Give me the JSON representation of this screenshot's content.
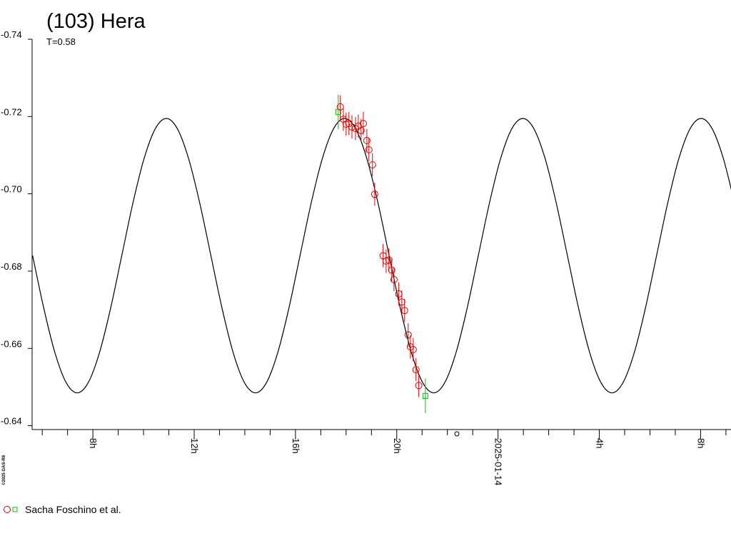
{
  "chart_data": {
    "type": "scatter",
    "title": "(103) Hera",
    "subtitle": "T=0.58",
    "copyright": "©2025 GAS-R8",
    "legend": "bottom-left",
    "xlim": [
      5.6,
      33.2
    ],
    "ylim": [
      -0.639,
      -0.74
    ],
    "xticks": [
      {
        "value": 8,
        "label": "8h"
      },
      {
        "value": 12,
        "label": "12h"
      },
      {
        "value": 16,
        "label": "16h"
      },
      {
        "value": 20,
        "label": "20h"
      },
      {
        "value": 24,
        "label": "2025-01-14"
      },
      {
        "value": 28,
        "label": "4h"
      },
      {
        "value": 32,
        "label": "8h"
      }
    ],
    "xminorticks": [
      6,
      7,
      9,
      10,
      11,
      13,
      14,
      15,
      17,
      18,
      19,
      21,
      22,
      23,
      25,
      26,
      27,
      29,
      30,
      31,
      33
    ],
    "yticks": [
      -0.74,
      -0.72,
      {
        "value": -0.7,
        "label": "-0.70"
      },
      -0.68,
      -0.66,
      -0.64
    ],
    "model": {
      "color": "#000000",
      "x": [
        5.62,
        6.06,
        6.5,
        6.94,
        7.38,
        7.82,
        8.26,
        8.7,
        9.14,
        9.58,
        10.02,
        10.46,
        10.9,
        11.34,
        11.78,
        12.22,
        12.66,
        13.1,
        13.54,
        13.98,
        14.42,
        14.86,
        15.3,
        15.74,
        16.18,
        16.62,
        17.06,
        17.5,
        17.94,
        18.38,
        18.82,
        19.26,
        19.7,
        20.14,
        20.58,
        21.02,
        21.46,
        21.9,
        22.34,
        22.78,
        23.22,
        23.66,
        24.1,
        24.54,
        24.98,
        25.42,
        25.86,
        26.3,
        26.74,
        27.18,
        27.62,
        28.06,
        28.5,
        28.94,
        29.38,
        29.82,
        30.26,
        30.7,
        31.14,
        31.58,
        32.02,
        32.46,
        32.9,
        33.34
      ],
      "values": [
        -0.684,
        -0.6704,
        -0.6589,
        -0.6512,
        -0.6485,
        -0.6512,
        -0.6589,
        -0.6704,
        -0.684,
        -0.6976,
        -0.7091,
        -0.7168,
        -0.7195,
        -0.7168,
        -0.7091,
        -0.6976,
        -0.684,
        -0.6704,
        -0.6589,
        -0.6512,
        -0.6485,
        -0.6512,
        -0.6589,
        -0.6704,
        -0.684,
        -0.6976,
        -0.7091,
        -0.7168,
        -0.7195,
        -0.7168,
        -0.7091,
        -0.6976,
        -0.684,
        -0.6704,
        -0.6589,
        -0.6512,
        -0.6485,
        -0.6512,
        -0.6589,
        -0.6704,
        -0.684,
        -0.6976,
        -0.7091,
        -0.7168,
        -0.7195,
        -0.7168,
        -0.7091,
        -0.6976,
        -0.684,
        -0.6704,
        -0.6589,
        -0.6512,
        -0.6485,
        -0.6512,
        -0.6589,
        -0.6704,
        -0.684,
        -0.6976,
        -0.7091,
        -0.7168,
        -0.7195,
        -0.7168,
        -0.7091,
        -0.6976
      ]
    },
    "series": [
      {
        "name": "Sacha Foschino et al.",
        "groups": [
          {
            "marker": "circle",
            "color": "#e00000",
            "x": [
              17.77,
              17.89,
              18.0,
              18.11,
              18.23,
              18.37,
              18.48,
              18.59,
              18.68,
              18.82,
              18.9,
              19.04,
              19.13,
              19.46,
              19.58,
              19.69,
              19.8,
              19.89,
              20.08,
              20.2,
              20.31,
              20.45,
              20.54,
              20.65,
              20.76,
              20.87
            ],
            "values": [
              -0.7225,
              -0.7193,
              -0.718,
              -0.7182,
              -0.7173,
              -0.7169,
              -0.7175,
              -0.7164,
              -0.7182,
              -0.7138,
              -0.7114,
              -0.7075,
              -0.6999,
              -0.684,
              -0.6826,
              -0.6829,
              -0.6803,
              -0.6778,
              -0.6741,
              -0.672,
              -0.6698,
              -0.6635,
              -0.6604,
              -0.6597,
              -0.6545,
              -0.6504
            ],
            "errors": [
              0.003,
              0.003,
              0.003,
              0.003,
              0.003,
              0.003,
              0.003,
              0.003,
              0.003,
              0.003,
              0.003,
              0.003,
              0.003,
              0.003,
              0.003,
              0.003,
              0.003,
              0.003,
              0.003,
              0.003,
              0.003,
              0.003,
              0.003,
              0.003,
              0.003,
              0.003
            ]
          },
          {
            "marker": "square",
            "color": "#00c000",
            "x": [
              17.69,
              21.13
            ],
            "values": [
              -0.7212,
              -0.6477
            ],
            "errors": [
              0.0045,
              0.0045
            ]
          }
        ]
      }
    ]
  }
}
